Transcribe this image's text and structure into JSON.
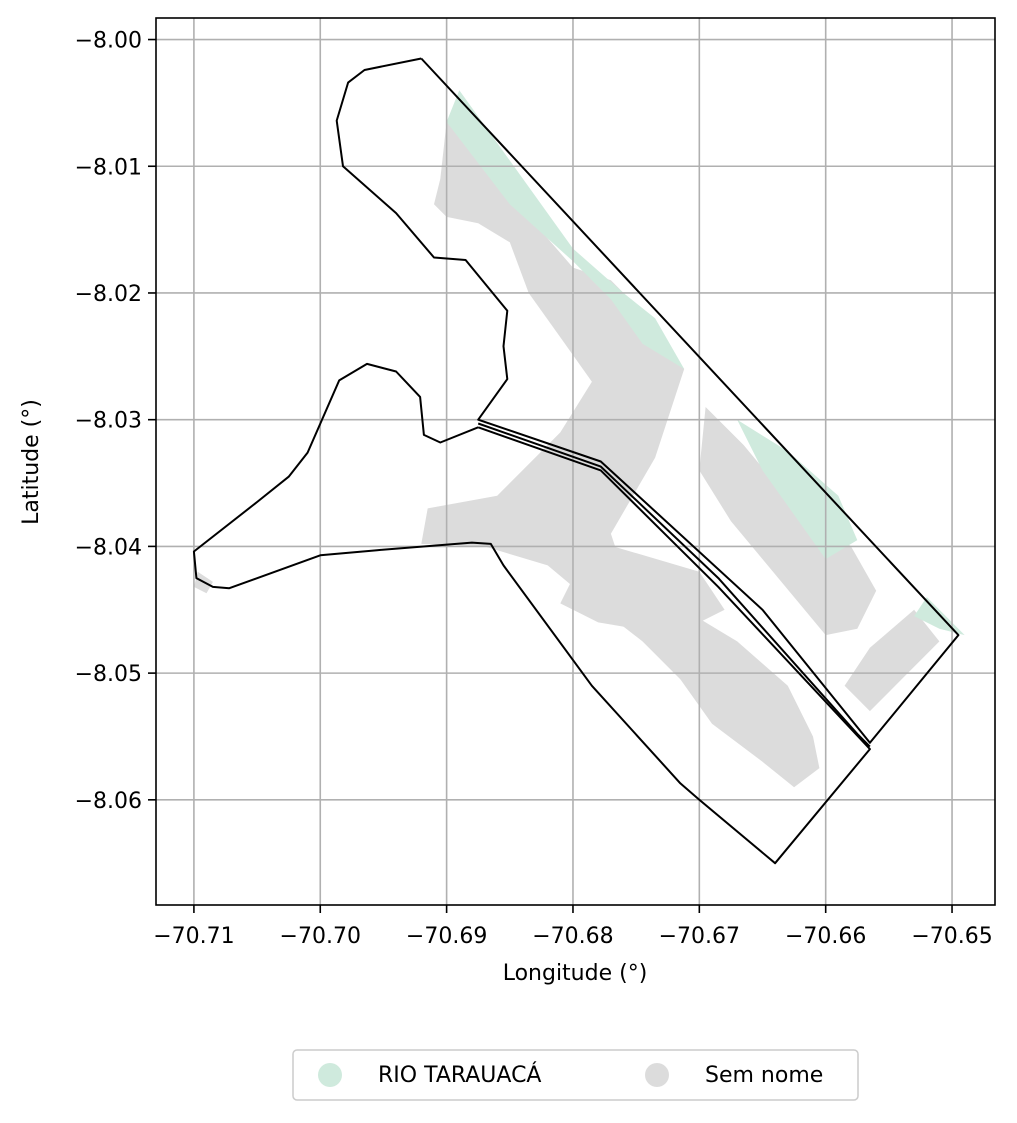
{
  "axes": {
    "xlabel": "Longitude (°)",
    "ylabel": "Latitude (°)",
    "xlim": [
      -70.713,
      -70.6466
    ],
    "ylim": [
      -8.0683,
      -7.9983
    ],
    "x_ticks": [
      -70.71,
      -70.7,
      -70.69,
      -70.68,
      -70.67,
      -70.66,
      -70.65
    ],
    "y_ticks": [
      -8.0,
      -8.01,
      -8.02,
      -8.03,
      -8.04,
      -8.05,
      -8.06
    ],
    "x_tick_labels": [
      "−70.71",
      "−70.70",
      "−70.69",
      "−70.68",
      "−70.67",
      "−70.66",
      "−70.65"
    ],
    "y_tick_labels": [
      "−8.00",
      "−8.01",
      "−8.02",
      "−8.03",
      "−8.04",
      "−8.05",
      "−8.06"
    ],
    "grid": true
  },
  "legend": {
    "placement": "bottom-center",
    "items": [
      {
        "label": "RIO TARAUACÁ",
        "color": "#cfeadd"
      },
      {
        "label": "Sem nome",
        "color": "#dcdcdc"
      }
    ]
  },
  "colors": {
    "river": "#cfeadd",
    "unnamed": "#dcdcdc",
    "outline": "#000000",
    "grid": "#b0b0b0"
  },
  "layers": {
    "unnamed_areas": [
      [
        [
          -70.69,
          -8.0065
        ],
        [
          -70.68,
          -8.018
        ],
        [
          -70.677,
          -8.019
        ],
        [
          -70.6745,
          -8.0215
        ],
        [
          -70.6712,
          -8.026
        ],
        [
          -70.6735,
          -8.033
        ],
        [
          -70.677,
          -8.039
        ],
        [
          -70.676,
          -8.042
        ],
        [
          -70.672,
          -8.0445
        ],
        [
          -70.667,
          -8.0475
        ],
        [
          -70.663,
          -8.051
        ],
        [
          -70.661,
          -8.055
        ],
        [
          -70.6605,
          -8.0575
        ],
        [
          -70.6625,
          -8.059
        ],
        [
          -70.665,
          -8.057
        ],
        [
          -70.669,
          -8.054
        ],
        [
          -70.6715,
          -8.0505
        ],
        [
          -70.6745,
          -8.0475
        ],
        [
          -70.679,
          -8.044
        ],
        [
          -70.682,
          -8.0415
        ],
        [
          -70.687,
          -8.04
        ],
        [
          -70.692,
          -8.0398
        ],
        [
          -70.6915,
          -8.037
        ],
        [
          -70.686,
          -8.036
        ],
        [
          -70.683,
          -8.033
        ],
        [
          -70.681,
          -8.031
        ],
        [
          -70.6785,
          -8.027
        ],
        [
          -70.681,
          -8.0235
        ],
        [
          -70.6835,
          -8.02
        ],
        [
          -70.685,
          -8.016
        ],
        [
          -70.6875,
          -8.0145
        ],
        [
          -70.69,
          -8.014
        ],
        [
          -70.691,
          -8.013
        ],
        [
          -70.6905,
          -8.011
        ]
      ],
      [
        [
          -70.6785,
          -8.0395
        ],
        [
          -70.681,
          -8.0445
        ],
        [
          -70.678,
          -8.046
        ],
        [
          -70.672,
          -8.047
        ],
        [
          -70.668,
          -8.045
        ],
        [
          -70.67,
          -8.042
        ]
      ],
      [
        [
          -70.6695,
          -8.029
        ],
        [
          -70.6665,
          -8.032
        ],
        [
          -70.664,
          -8.035
        ],
        [
          -70.661,
          -8.0375
        ],
        [
          -70.658,
          -8.04
        ],
        [
          -70.656,
          -8.0435
        ],
        [
          -70.6575,
          -8.0465
        ],
        [
          -70.66,
          -8.047
        ],
        [
          -70.6625,
          -8.044
        ],
        [
          -70.665,
          -8.041
        ],
        [
          -70.6675,
          -8.038
        ],
        [
          -70.67,
          -8.034
        ]
      ],
      [
        [
          -70.653,
          -8.045
        ],
        [
          -70.6565,
          -8.048
        ],
        [
          -70.6585,
          -8.051
        ],
        [
          -70.6565,
          -8.053
        ],
        [
          -70.6545,
          -8.051
        ],
        [
          -70.651,
          -8.0475
        ]
      ],
      [
        [
          -70.7097,
          -8.042
        ],
        [
          -70.7085,
          -8.0428
        ],
        [
          -70.709,
          -8.0437
        ],
        [
          -70.71,
          -8.0432
        ]
      ]
    ],
    "river_areas": [
      [
        [
          -70.69,
          -8.0065
        ],
        [
          -70.689,
          -8.004
        ],
        [
          -70.68,
          -8.0165
        ],
        [
          -70.676,
          -8.02
        ],
        [
          -70.6735,
          -8.022
        ],
        [
          -70.6712,
          -8.026
        ],
        [
          -70.6745,
          -8.024
        ],
        [
          -70.677,
          -8.0205
        ],
        [
          -70.68,
          -8.0175
        ],
        [
          -70.685,
          -8.013
        ]
      ],
      [
        [
          -70.667,
          -8.03
        ],
        [
          -70.663,
          -8.0325
        ],
        [
          -70.659,
          -8.036
        ],
        [
          -70.6575,
          -8.0395
        ],
        [
          -70.66,
          -8.041
        ],
        [
          -70.6625,
          -8.0375
        ],
        [
          -70.665,
          -8.034
        ]
      ],
      [
        [
          -70.652,
          -8.044
        ],
        [
          -70.649,
          -8.047
        ],
        [
          -70.651,
          -8.0465
        ],
        [
          -70.653,
          -8.0455
        ]
      ]
    ],
    "outlines": [
      [
        [
          -70.692,
          -8.0015
        ],
        [
          -70.6965,
          -8.0024
        ],
        [
          -70.6978,
          -8.0034
        ],
        [
          -70.6987,
          -8.0064
        ],
        [
          -70.6982,
          -8.01
        ],
        [
          -70.694,
          -8.0137
        ],
        [
          -70.691,
          -8.0172
        ],
        [
          -70.6885,
          -8.0174
        ],
        [
          -70.6852,
          -8.0214
        ],
        [
          -70.6855,
          -8.0242
        ],
        [
          -70.6852,
          -8.0268
        ],
        [
          -70.6875,
          -8.03
        ],
        [
          -70.6778,
          -8.0333
        ],
        [
          -70.665,
          -8.045
        ],
        [
          -70.6565,
          -8.0555
        ],
        [
          -70.6495,
          -8.047
        ],
        [
          -70.692,
          -8.0015
        ]
      ],
      [
        [
          -70.6875,
          -8.0303
        ],
        [
          -70.6778,
          -8.0337
        ],
        [
          -70.6685,
          -8.0425
        ],
        [
          -70.6575,
          -8.0548
        ],
        [
          -70.6565,
          -8.0558
        ]
      ],
      [
        [
          -70.6875,
          -8.0306
        ],
        [
          -70.6905,
          -8.0318
        ],
        [
          -70.6918,
          -8.0312
        ],
        [
          -70.6921,
          -8.0282
        ],
        [
          -70.694,
          -8.0262
        ],
        [
          -70.6963,
          -8.0256
        ],
        [
          -70.6985,
          -8.0269
        ],
        [
          -70.701,
          -8.0326
        ],
        [
          -70.7025,
          -8.0345
        ],
        [
          -70.705,
          -8.0365
        ],
        [
          -70.71,
          -8.0404
        ],
        [
          -70.7098,
          -8.0425
        ],
        [
          -70.7085,
          -8.0432
        ],
        [
          -70.7072,
          -8.0433
        ],
        [
          -70.7,
          -8.0407
        ],
        [
          -70.6955,
          -8.0403
        ],
        [
          -70.688,
          -8.0397
        ],
        [
          -70.6865,
          -8.0398
        ],
        [
          -70.6855,
          -8.0415
        ],
        [
          -70.6785,
          -8.051
        ],
        [
          -70.6715,
          -8.0587
        ],
        [
          -70.67,
          -8.06
        ],
        [
          -70.664,
          -8.065
        ],
        [
          -70.6565,
          -8.056
        ],
        [
          -70.6685,
          -8.0432
        ],
        [
          -70.6778,
          -8.034
        ],
        [
          -70.6875,
          -8.0306
        ]
      ]
    ]
  }
}
